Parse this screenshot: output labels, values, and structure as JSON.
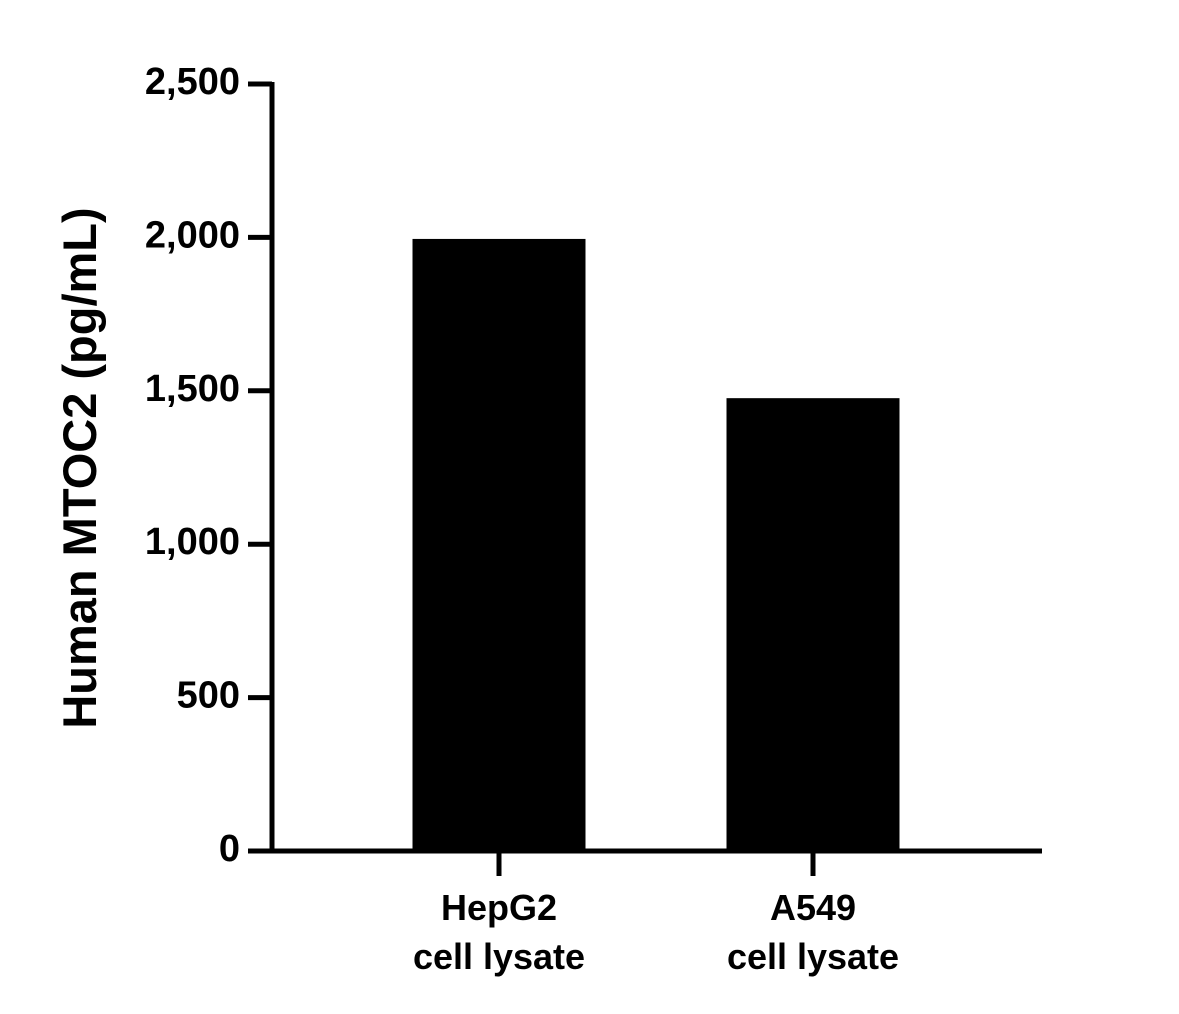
{
  "chart_data": {
    "type": "bar",
    "y_label": "Human MTOC2 (pg/mL)",
    "categories": [
      "HepG2\ncell lysate",
      "A549\ncell lysate"
    ],
    "values": [
      1995,
      1476
    ],
    "color": "#000000",
    "ylim": [
      0,
      2500
    ],
    "yticks": [
      0,
      500,
      {
        "value": 1000,
        "label": "1,000"
      },
      {
        "value": 1500,
        "label": "1,500"
      },
      {
        "value": 2000,
        "label": "2,000"
      },
      {
        "value": 2500,
        "label": "2,500"
      }
    ]
  }
}
